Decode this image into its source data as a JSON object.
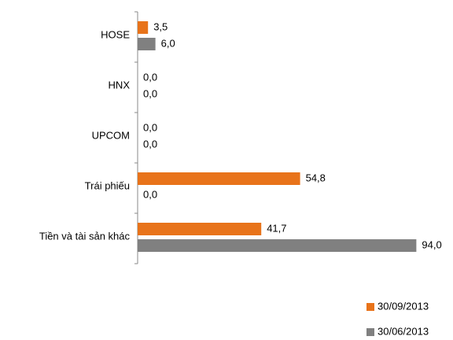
{
  "chart_data": {
    "type": "hbar",
    "categories": [
      "HOSE",
      "HNX",
      "UPCOM",
      "Trái phiếu",
      "Tiền và tài sản khác"
    ],
    "series": [
      {
        "name": "30/09/2013",
        "color": "#e8731a",
        "values": [
          3.5,
          0.0,
          0.0,
          54.8,
          41.7
        ],
        "value_labels": [
          "3,5",
          "0,0",
          "0,0",
          "54,8",
          "41,7"
        ]
      },
      {
        "name": "30/06/2013",
        "color": "#808080",
        "values": [
          6.0,
          0.0,
          0.0,
          0.0,
          94.0
        ],
        "value_labels": [
          "6,0",
          "0,0",
          "0,0",
          "0,0",
          "94,0"
        ]
      }
    ],
    "xlim": [
      0,
      100
    ],
    "legend": "bottom-right"
  }
}
